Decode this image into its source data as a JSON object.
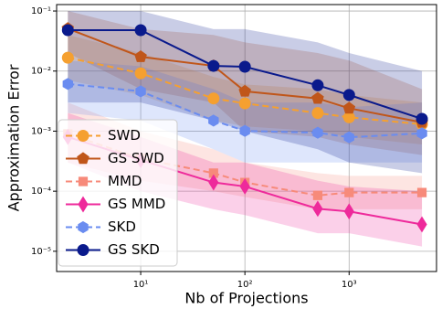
{
  "chart_data": {
    "type": "line",
    "x_label": "Nb of Projections",
    "y_label": "Approximation Error",
    "x": [
      2,
      10,
      50,
      100,
      500,
      1000,
      5000
    ],
    "xscale": "log",
    "yscale": "log",
    "grid": true,
    "legend": "center left",
    "xlim": [
      1.56,
      6900
    ],
    "ylim": [
      4.6e-06,
      0.128
    ],
    "xticks": [
      {
        "value": 10,
        "label": "10¹"
      },
      {
        "value": 100,
        "label": "10²"
      },
      {
        "value": 1000,
        "label": "10³"
      }
    ],
    "yticks": [
      {
        "value": 1e-05,
        "label": "10⁻⁵"
      },
      {
        "value": 0.0001,
        "label": "10⁻⁴"
      },
      {
        "value": 0.001,
        "label": "10⁻³"
      },
      {
        "value": 0.01,
        "label": "10⁻²"
      },
      {
        "value": 0.1,
        "label": "10⁻¹"
      }
    ],
    "series": [
      {
        "name": "SWD",
        "color": "#f5a030",
        "marker": "circle",
        "linestyle": "dashed",
        "values": [
          0.0167,
          0.0092,
          0.0035,
          0.0029,
          0.002,
          0.0017,
          0.0013
        ],
        "lower": [
          0.007,
          0.004,
          0.0015,
          0.0012,
          0.001,
          0.0008,
          0.0006
        ],
        "upper": [
          0.04,
          0.02,
          0.008,
          0.006,
          0.005,
          0.004,
          0.003
        ]
      },
      {
        "name": "GS SWD",
        "color": "#c0561a",
        "marker": "pentagon",
        "linestyle": "solid",
        "values": [
          0.051,
          0.0173,
          0.0122,
          0.0046,
          0.0035,
          0.0024,
          0.0014
        ],
        "lower": [
          0.02,
          0.005,
          0.003,
          0.001,
          0.0008,
          0.0006,
          0.0004
        ],
        "upper": [
          0.1,
          0.05,
          0.04,
          0.03,
          0.02,
          0.015,
          0.005
        ]
      },
      {
        "name": "MMD",
        "color": "#f78a7a",
        "marker": "square",
        "linestyle": "dashed",
        "values": [
          0.0009,
          0.00035,
          0.0002,
          0.00014,
          8.5e-05,
          9.5e-05,
          9.5e-05
        ],
        "lower": [
          0.0003,
          0.00015,
          0.0001,
          8e-05,
          5e-05,
          5e-05,
          5e-05
        ],
        "upper": [
          0.003,
          0.001,
          0.0005,
          0.0003,
          0.0002,
          0.00018,
          0.00018
        ]
      },
      {
        "name": "GS MMD",
        "color": "#ee2a9b",
        "marker": "diamond",
        "linestyle": "solid",
        "values": [
          0.0008,
          0.00033,
          0.00014,
          0.00012,
          5.1e-05,
          4.6e-05,
          2.8e-05
        ],
        "lower": [
          0.0003,
          0.0001,
          5e-05,
          4e-05,
          2e-05,
          2e-05,
          1.2e-05
        ],
        "upper": [
          0.002,
          0.0008,
          0.0003,
          0.0003,
          0.00015,
          0.00012,
          0.0001
        ]
      },
      {
        "name": "SKD",
        "color": "#6a8cf0",
        "marker": "hexagon",
        "linestyle": "dashed",
        "values": [
          0.0061,
          0.0046,
          0.0015,
          0.00101,
          0.00094,
          0.00079,
          0.00092
        ],
        "lower": [
          0.002,
          0.0015,
          0.0005,
          0.0003,
          0.0003,
          0.0003,
          0.0003
        ],
        "upper": [
          0.015,
          0.012,
          0.005,
          0.003,
          0.003,
          0.0025,
          0.003
        ]
      },
      {
        "name": "GS SKD",
        "color": "#0a1a8c",
        "marker": "circle",
        "linestyle": "solid",
        "values": [
          0.048,
          0.048,
          0.0122,
          0.0118,
          0.0058,
          0.004,
          0.0016
        ],
        "lower": [
          0.003,
          0.003,
          0.0015,
          0.001,
          0.0005,
          0.0003,
          0.0002
        ],
        "upper": [
          0.1,
          0.1,
          0.05,
          0.05,
          0.03,
          0.02,
          0.01
        ]
      }
    ]
  }
}
